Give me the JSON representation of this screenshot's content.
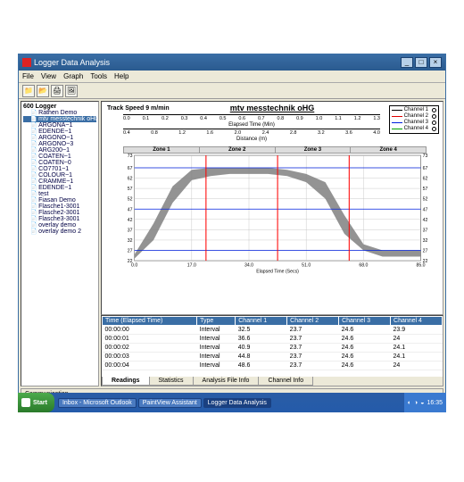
{
  "window": {
    "title": "Logger Data Analysis",
    "menus": [
      "File",
      "View",
      "Graph",
      "Tools",
      "Help"
    ]
  },
  "tree": {
    "root": "600 Logger",
    "items": [
      {
        "label": "Rathen Demo"
      },
      {
        "label": "mtv messtechnik oHG",
        "selected": true
      },
      {
        "label": "ARGONA~1"
      },
      {
        "label": "EDENDE~1"
      },
      {
        "label": "ARGONO~1"
      },
      {
        "label": "ARGONO~3"
      },
      {
        "label": "ARG200~1"
      },
      {
        "label": "COATEN~1"
      },
      {
        "label": "COATEN~0"
      },
      {
        "label": "CO7701~1"
      },
      {
        "label": "COLOUR~1"
      },
      {
        "label": "CRAMME~1"
      },
      {
        "label": "EDENDE~1"
      },
      {
        "label": "test"
      },
      {
        "label": "Fiasan Demo"
      },
      {
        "label": "Flasche1-3001"
      },
      {
        "label": "Flasche2-3001"
      },
      {
        "label": "Flasche3-3001"
      },
      {
        "label": "overlay demo"
      },
      {
        "label": "overlay demo 2"
      }
    ]
  },
  "chart": {
    "track_speed_label": "Track Speed 9 m/min",
    "main_title": "mtv messtechnik oHG",
    "legend": [
      {
        "label": "Channel 1",
        "color": "#000000"
      },
      {
        "label": "Channel 2",
        "color": "#e00000"
      },
      {
        "label": "Channel 3",
        "color": "#0020e0"
      },
      {
        "label": "Channel 4",
        "color": "#00a000"
      }
    ],
    "top_axis1": {
      "label": "Elapsed Time (Min)",
      "ticks": [
        "0.0",
        "0.1",
        "0.2",
        "0.3",
        "0.4",
        "0.5",
        "0.6",
        "0.7",
        "0.8",
        "0.9",
        "1.0",
        "1.1",
        "1.2",
        "1.3"
      ]
    },
    "top_axis2": {
      "label": "Distance (m)",
      "ticks": [
        "0.4",
        "0.8",
        "1.2",
        "1.6",
        "2.0",
        "2.4",
        "2.8",
        "3.2",
        "3.6",
        "4.0"
      ]
    },
    "zones": [
      "Zone 1",
      "Zone 2",
      "Zone 3",
      "Zone 4"
    ],
    "x_axis": {
      "label": "Elapsed Time (Secs)",
      "ticks": [
        "0.0",
        "17.0",
        "34.0",
        "51.0",
        "68.0",
        "85.0"
      ]
    },
    "y_axis": {
      "min": 22,
      "max": 73,
      "ticks": [
        22,
        27,
        32,
        37,
        42,
        47,
        52,
        57,
        62,
        67,
        73
      ]
    },
    "zone_dividers_x": [
      25,
      50,
      75
    ],
    "band_upper": [
      25,
      40,
      58,
      66,
      67,
      67,
      67,
      67,
      66,
      64,
      60,
      44,
      30,
      27,
      27,
      27
    ],
    "band_lower": [
      23,
      32,
      50,
      61,
      63,
      64,
      64,
      64,
      63,
      60,
      52,
      35,
      27,
      24,
      24,
      24
    ],
    "line_color": "#0020e0",
    "vline_color": "#ff0000",
    "band_fill": "#808080",
    "grid_color": "#c0c0c0"
  },
  "table": {
    "columns": [
      "Time (Elapsed Time)",
      "Type",
      "Channel 1",
      "Channel 2",
      "Channel 3",
      "Channel 4"
    ],
    "rows": [
      [
        "00:00:00",
        "Interval",
        "32.5",
        "23.7",
        "24.6",
        "23.9"
      ],
      [
        "00:00:01",
        "Interval",
        "36.6",
        "23.7",
        "24.6",
        "24"
      ],
      [
        "00:00:02",
        "Interval",
        "40.9",
        "23.7",
        "24.6",
        "24.1"
      ],
      [
        "00:00:03",
        "Interval",
        "44.8",
        "23.7",
        "24.6",
        "24.1"
      ],
      [
        "00:00:04",
        "Interval",
        "48.6",
        "23.7",
        "24.6",
        "24"
      ]
    ],
    "tabs": [
      "Readings",
      "Statistics",
      "Analysis File Info",
      "Channel Info"
    ],
    "active_tab": 0
  },
  "communication_label": "Communication",
  "taskbar": {
    "start": "Start",
    "tasks": [
      {
        "label": "Inbox - Microsoft Outlook"
      },
      {
        "label": "PaintView Assistant"
      },
      {
        "label": "Logger Data Analysis",
        "active": true
      }
    ],
    "clock": "16:35"
  }
}
